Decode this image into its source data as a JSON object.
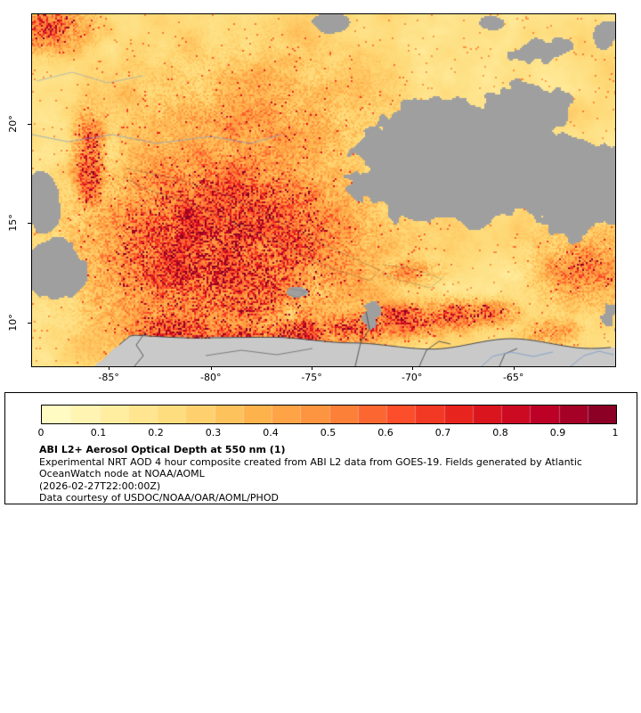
{
  "map": {
    "x_tick_labels": [
      "-85°",
      "-80°",
      "-75°",
      "-70°",
      "-65°"
    ],
    "y_tick_labels": [
      "20°",
      "15°",
      "10°"
    ]
  },
  "map_render": {
    "land_color": "#c9c9c9",
    "nodata_color": "#9f9f9f",
    "border_color": "#4a4a4a",
    "river_color": "#7d9ec8",
    "frame_color": "#000000"
  },
  "colorbar": {
    "min": 0,
    "max": 1,
    "tick_labels": [
      "0",
      "0.1",
      "0.2",
      "0.3",
      "0.4",
      "0.5",
      "0.6",
      "0.7",
      "0.8",
      "0.9",
      "1"
    ],
    "colors": [
      "#ffffcc",
      "#ffeda0",
      "#fed976",
      "#feb24c",
      "#fd8d3c",
      "#fc4e2a",
      "#e31a1c",
      "#bd0026",
      "#800026"
    ]
  },
  "legend": {
    "title": "ABI L2+ Aerosol Optical Depth at 550 nm (1)",
    "line1": "Experimental NRT AOD 4 hour composite created from ABI L2 data from GOES-19. Fields generated by Atlantic",
    "line2": "OceanWatch node at NOAA/AOML",
    "line3": "(2026-02-27T22:00:00Z)",
    "line4": "Data courtesy of USDOC/NOAA/OAR/AOML/PHOD"
  },
  "chart_data": {
    "type": "heatmap",
    "title": "ABI L2+ Aerosol Optical Depth at 550 nm (1)",
    "variable": "Aerosol Optical Depth at 550 nm",
    "value_range": [
      0,
      1
    ],
    "colorbar_ticks": [
      0,
      0.1,
      0.2,
      0.3,
      0.4,
      0.5,
      0.6,
      0.7,
      0.8,
      0.9,
      1
    ],
    "x_ticks_deg_lon": [
      -85,
      -80,
      -75,
      -70,
      -65
    ],
    "y_ticks_deg_lat": [
      20,
      15,
      10
    ],
    "legend_position": "bottom"
  }
}
